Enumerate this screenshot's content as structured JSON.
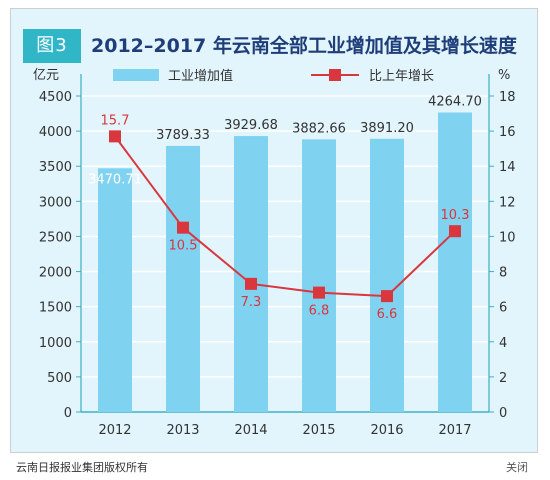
{
  "figure": {
    "badge": "图3",
    "title": "2012–2017 年云南全部工业增加值及其增长速度"
  },
  "footer": {
    "source": "云南日报报业集团版权所有",
    "close_label": "关闭"
  },
  "colors": {
    "panel_bg": "#e2f5fc",
    "bar": "#7fd3f1",
    "line": "#d9363e",
    "axis": "#3aaec6",
    "title": "#1f3e79",
    "grid": "#ffffff"
  },
  "chart_data": {
    "type": "bar",
    "categories": [
      "2012",
      "2013",
      "2014",
      "2015",
      "2016",
      "2017"
    ],
    "series": [
      {
        "name": "工业增加值",
        "type": "bar",
        "axis": "left",
        "values": [
          3470.71,
          3789.33,
          3929.68,
          3882.66,
          3891.2,
          4264.7
        ],
        "labels": [
          "3470.71",
          "3789.33",
          "3929.68",
          "3882.66",
          "3891.20",
          "4264.70"
        ]
      },
      {
        "name": "比上年增长",
        "type": "line",
        "axis": "right",
        "values": [
          15.7,
          10.5,
          7.3,
          6.8,
          6.6,
          10.3
        ],
        "labels": [
          "15.7",
          "10.5",
          "7.3",
          "6.8",
          "6.6",
          "10.3"
        ]
      }
    ],
    "ylabel_left": "亿元",
    "ylabel_right": "%",
    "ylim_left": [
      0,
      4500
    ],
    "yticks_left": [
      "0",
      "500",
      "1000",
      "1500",
      "2000",
      "2500",
      "3000",
      "3500",
      "4000",
      "4500"
    ],
    "ylim_right": [
      0,
      18
    ],
    "yticks_right": [
      "0",
      "2",
      "4",
      "6",
      "8",
      "10",
      "12",
      "14",
      "16",
      "18"
    ],
    "grid": true,
    "legend_position": "top"
  }
}
